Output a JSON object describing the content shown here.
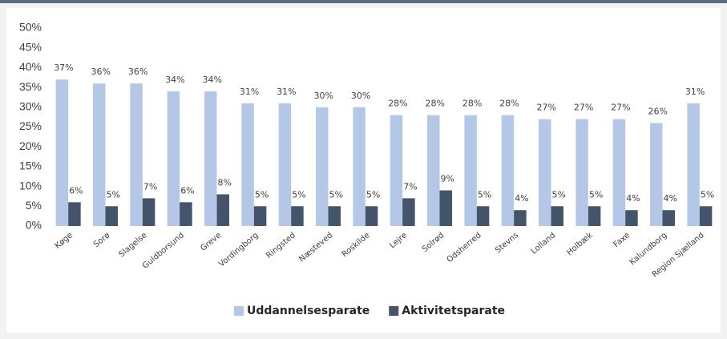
{
  "chart_data": {
    "type": "bar",
    "categories": [
      "Køge",
      "Sorø",
      "Slagelse",
      "Guldborsund",
      "Greve",
      "Vordingborg",
      "Ringsted",
      "Næsteved",
      "Roskilde",
      "Lejre",
      "Solrød",
      "Odsherred",
      "Stevns",
      "Lolland",
      "Holbæk",
      "Faxe",
      "Kalundborg",
      "Region Sjælland"
    ],
    "series": [
      {
        "name": "Uddannelsesparate",
        "color": "#b4c7e7",
        "values": [
          37,
          36,
          36,
          34,
          34,
          31,
          31,
          30,
          30,
          28,
          28,
          28,
          28,
          27,
          27,
          27,
          26,
          31
        ],
        "value_labels": [
          "37%",
          "36%",
          "36%",
          "34%",
          "34%",
          "31%",
          "31%",
          "30%",
          "30%",
          "28%",
          "28%",
          "28%",
          "28%",
          "27%",
          "27%",
          "27%",
          "26%",
          "31%"
        ]
      },
      {
        "name": "Aktivitetsparate",
        "color": "#44546a",
        "values": [
          6,
          5,
          7,
          6,
          8,
          5,
          5,
          5,
          5,
          7,
          9,
          5,
          4,
          5,
          5,
          4,
          4,
          5
        ],
        "value_labels": [
          "6%",
          "5%",
          "7%",
          "6%",
          "8%",
          "5%",
          "5%",
          "5%",
          "5%",
          "7%",
          "9%",
          "5%",
          "4%",
          "5%",
          "5%",
          "4%",
          "4%",
          "5%"
        ]
      }
    ],
    "ylim": [
      0,
      50
    ],
    "yticks": [
      {
        "value": 0,
        "label": "0%"
      },
      {
        "value": 5,
        "label": "5%"
      },
      {
        "value": 10,
        "label": "10%"
      },
      {
        "value": 15,
        "label": "15%"
      },
      {
        "value": 20,
        "label": "20%"
      },
      {
        "value": 25,
        "label": "25%"
      },
      {
        "value": 30,
        "label": "30%"
      },
      {
        "value": 35,
        "label": "35%"
      },
      {
        "value": 40,
        "label": "40%"
      },
      {
        "value": 45,
        "label": "45%"
      },
      {
        "value": 50,
        "label": "50%"
      }
    ],
    "grid": false,
    "legend": "bottom"
  }
}
